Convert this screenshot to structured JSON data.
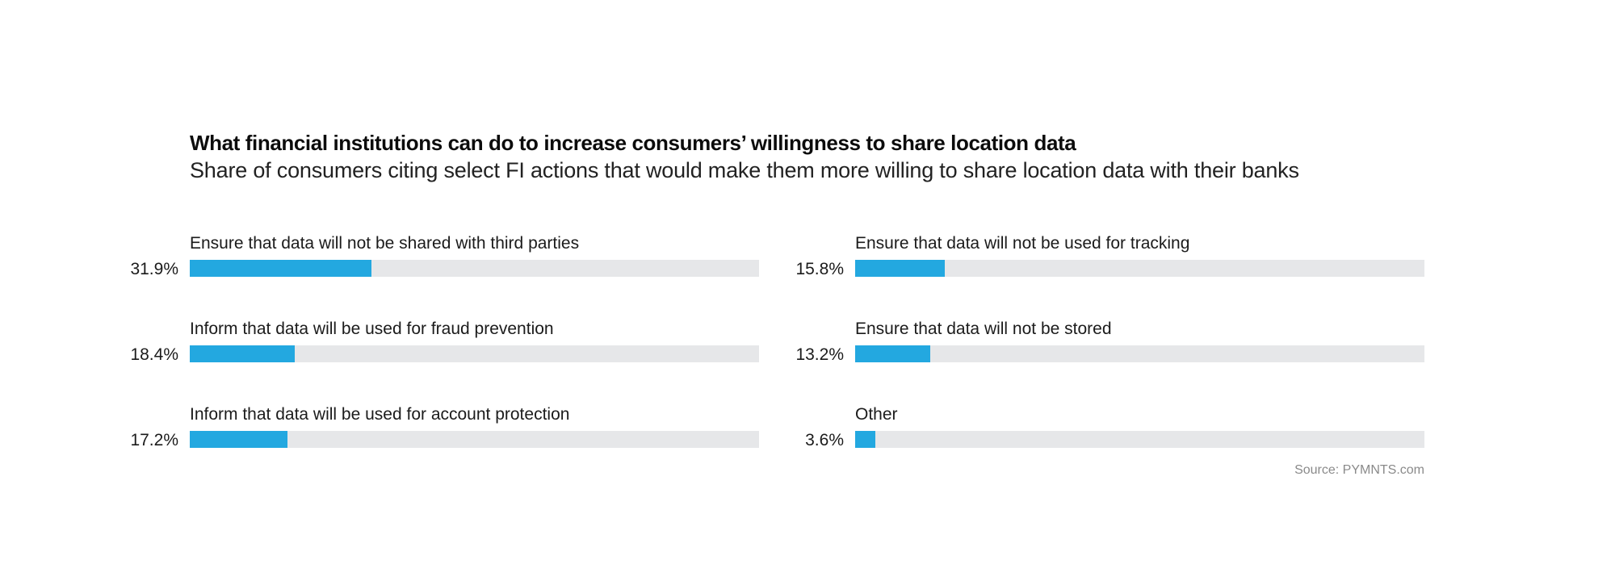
{
  "chart_data": {
    "type": "bar",
    "orientation": "horizontal",
    "title": "What financial institutions can do to increase consumers’ willingness to share location data",
    "subtitle": "Share of consumers citing select FI actions that would make them more willing to share location data with their banks",
    "xlim": [
      0,
      100
    ],
    "unit": "%",
    "categories": [
      "Ensure that data will not be shared with third parties",
      "Inform that data will be used for fraud prevention",
      "Inform that data will be used for account protection",
      "Ensure that data will not be used for tracking",
      "Ensure that data will not be stored",
      "Other"
    ],
    "values": [
      31.9,
      18.4,
      17.2,
      15.8,
      13.2,
      3.6
    ],
    "value_labels": [
      "31.9%",
      "18.4%",
      "17.2%",
      "15.8%",
      "13.2%",
      "3.6%"
    ],
    "source": "Source: PYMNTS.com",
    "colors": {
      "bar": "#23a8e0",
      "track": "#e6e7e9"
    }
  }
}
